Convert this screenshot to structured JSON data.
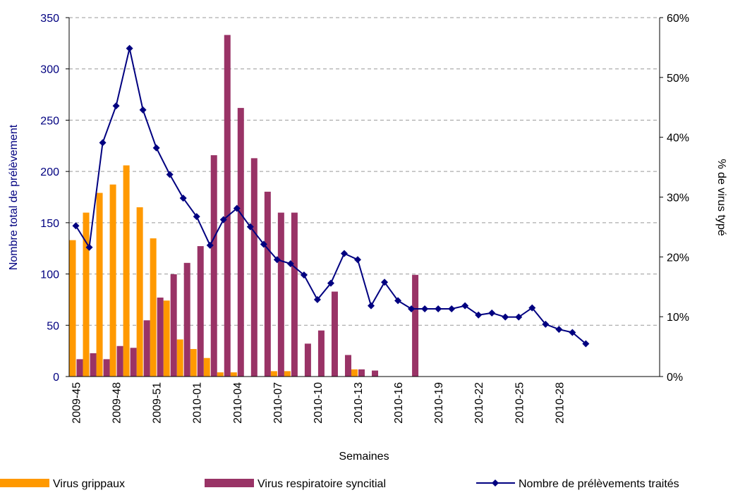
{
  "chart_data": {
    "type": "bar-line",
    "x_label": "Semaines",
    "y_label": "Nombre total de prélèvement",
    "y2_label": "% de virus typé",
    "categories": [
      "2009-45",
      null,
      null,
      "2009-48",
      null,
      null,
      "2009-51",
      null,
      null,
      "2010-01",
      null,
      null,
      "2010-04",
      null,
      null,
      "2010-07",
      null,
      null,
      "2010-10",
      null,
      null,
      "2010-13",
      null,
      null,
      "2010-16",
      null,
      null,
      "2010-19",
      null,
      null,
      "2010-22",
      null,
      null,
      "2010-25",
      null,
      null,
      "2010-28",
      null,
      null,
      null,
      null,
      null,
      null,
      null
    ],
    "ylim": [
      0,
      350
    ],
    "yticks": [
      0,
      50,
      100,
      150,
      200,
      250,
      300,
      350
    ],
    "y2lim": [
      0,
      60
    ],
    "y2ticks": [
      {
        "value": 0,
        "label": "0%"
      },
      {
        "value": 10,
        "label": "10%"
      },
      {
        "value": 20,
        "label": "20%"
      },
      {
        "value": 30,
        "label": "30%"
      },
      {
        "value": 40,
        "label": "40%"
      },
      {
        "value": 50,
        "label": "50%"
      },
      {
        "value": 60,
        "label": "60%"
      }
    ],
    "grid": true,
    "legend": "bottom",
    "series": [
      {
        "name": "Virus grippaux",
        "kind": "bar",
        "axis": "y2",
        "color": "#ff9900",
        "values": [
          22.8,
          27.4,
          30.7,
          32.1,
          35.3,
          28.3,
          23.1,
          12.7,
          6.2,
          4.6,
          3.1,
          0.7,
          0.7,
          0,
          0,
          0.9,
          0.9,
          0,
          0,
          0,
          0,
          1.2,
          0,
          0,
          0,
          0,
          0,
          0,
          0,
          0,
          0,
          0,
          0,
          0,
          0,
          0,
          0,
          0,
          0,
          null,
          null,
          null,
          null,
          null
        ]
      },
      {
        "name": "Virus respiratoire syncitial",
        "kind": "bar",
        "axis": "y2",
        "color": "#993366",
        "values": [
          2.9,
          3.9,
          2.9,
          5.1,
          4.8,
          9.4,
          13.2,
          17.1,
          19.0,
          21.8,
          37.0,
          57.1,
          44.9,
          36.5,
          30.9,
          27.4,
          27.4,
          5.5,
          7.7,
          14.2,
          3.6,
          1.2,
          1.0,
          0,
          0,
          17.0,
          0,
          0,
          0,
          0,
          0,
          0,
          0,
          0,
          0,
          0,
          0,
          0,
          0,
          null,
          null,
          null,
          null,
          null
        ]
      },
      {
        "name": "Nombre de prélèvements traités",
        "kind": "line",
        "color": "#000080",
        "values": [
          147,
          126,
          228,
          264,
          320,
          260,
          223,
          197,
          174,
          156,
          128,
          153,
          164,
          146,
          129,
          114,
          110,
          99,
          75,
          91,
          120,
          114,
          69,
          92,
          74,
          66,
          66,
          66,
          66,
          69,
          60,
          62,
          58,
          58,
          67,
          51,
          46,
          43,
          32,
          null,
          null,
          null,
          null,
          null
        ]
      }
    ]
  }
}
